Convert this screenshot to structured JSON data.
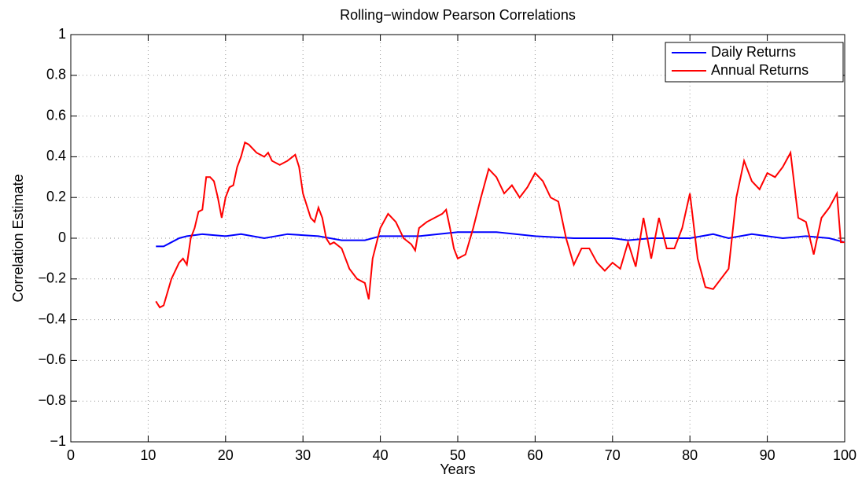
{
  "chart_data": {
    "type": "line",
    "title": "Rolling−window Pearson Correlations",
    "xlabel": "Years",
    "ylabel": "Correlation Estimate",
    "xlim": [
      0,
      100
    ],
    "xticks": [
      0,
      10,
      20,
      30,
      40,
      50,
      60,
      70,
      80,
      90,
      100
    ],
    "ylim": [
      -1,
      1
    ],
    "yticks": [
      {
        "value": -1,
        "label": "−1"
      },
      {
        "value": -0.8,
        "label": "−0.8"
      },
      {
        "value": -0.6,
        "label": "−0.6"
      },
      {
        "value": -0.4,
        "label": "−0.4"
      },
      {
        "value": -0.2,
        "label": "−0.2"
      },
      0,
      0.2,
      0.4,
      0.6,
      0.8,
      1
    ],
    "grid": true,
    "legend": "northeast",
    "series": [
      {
        "name": "Daily Returns",
        "color": "#0000ff",
        "x": [
          11,
          12,
          13,
          14,
          15,
          17,
          20,
          22,
          25,
          28,
          32,
          35,
          38,
          40,
          45,
          50,
          55,
          60,
          65,
          70,
          72,
          75,
          80,
          83,
          85,
          88,
          90,
          92,
          95,
          98,
          100
        ],
        "values": [
          -0.04,
          -0.04,
          -0.02,
          0.0,
          0.01,
          0.02,
          0.01,
          0.02,
          0.0,
          0.02,
          0.01,
          -0.01,
          -0.01,
          0.01,
          0.01,
          0.03,
          0.03,
          0.01,
          0.0,
          0.0,
          -0.01,
          0.0,
          0.0,
          0.02,
          0.0,
          0.02,
          0.01,
          0.0,
          0.01,
          0.0,
          -0.02
        ]
      },
      {
        "name": "Annual Returns",
        "color": "#ff0000",
        "x": [
          11,
          11.5,
          12,
          13,
          14,
          14.5,
          15,
          15.5,
          16,
          16.5,
          17,
          17.5,
          18,
          18.5,
          19,
          19.5,
          20,
          20.5,
          21,
          21.5,
          22,
          22.5,
          23,
          24,
          25,
          25.5,
          26,
          27,
          28,
          29,
          29.5,
          30,
          31,
          31.5,
          32,
          32.5,
          33,
          33.5,
          34,
          35,
          36,
          37,
          38,
          38.5,
          39,
          40,
          41,
          42,
          43,
          44,
          44.5,
          45,
          46,
          47,
          48,
          48.5,
          49,
          49.5,
          50,
          51,
          52,
          53,
          54,
          55,
          56,
          57,
          58,
          59,
          60,
          61,
          62,
          63,
          64,
          65,
          66,
          67,
          68,
          69,
          70,
          71,
          72,
          73,
          74,
          75,
          76,
          77,
          78,
          79,
          80,
          81,
          82,
          83,
          84,
          85,
          86,
          87,
          88,
          89,
          90,
          91,
          92,
          93,
          94,
          95,
          96,
          97,
          98,
          99,
          99.5,
          100
        ],
        "values": [
          -0.31,
          -0.34,
          -0.33,
          -0.2,
          -0.12,
          -0.1,
          -0.13,
          0.0,
          0.05,
          0.13,
          0.14,
          0.3,
          0.3,
          0.28,
          0.2,
          0.1,
          0.2,
          0.25,
          0.26,
          0.35,
          0.4,
          0.47,
          0.46,
          0.42,
          0.4,
          0.42,
          0.38,
          0.36,
          0.38,
          0.41,
          0.35,
          0.22,
          0.1,
          0.08,
          0.15,
          0.1,
          0.0,
          -0.03,
          -0.02,
          -0.05,
          -0.15,
          -0.2,
          -0.22,
          -0.3,
          -0.1,
          0.05,
          0.12,
          0.08,
          0.0,
          -0.03,
          -0.06,
          0.05,
          0.08,
          0.1,
          0.12,
          0.14,
          0.05,
          -0.05,
          -0.1,
          -0.08,
          0.05,
          0.2,
          0.34,
          0.3,
          0.22,
          0.26,
          0.2,
          0.25,
          0.32,
          0.28,
          0.2,
          0.18,
          0.0,
          -0.13,
          -0.05,
          -0.05,
          -0.12,
          -0.16,
          -0.12,
          -0.15,
          -0.02,
          -0.14,
          0.1,
          -0.1,
          0.1,
          -0.05,
          -0.05,
          0.05,
          0.22,
          -0.1,
          -0.24,
          -0.25,
          -0.2,
          -0.15,
          0.2,
          0.38,
          0.28,
          0.24,
          0.32,
          0.3,
          0.35,
          0.42,
          0.1,
          0.08,
          -0.08,
          0.1,
          0.15,
          0.22,
          -0.02,
          -0.02
        ]
      }
    ]
  }
}
